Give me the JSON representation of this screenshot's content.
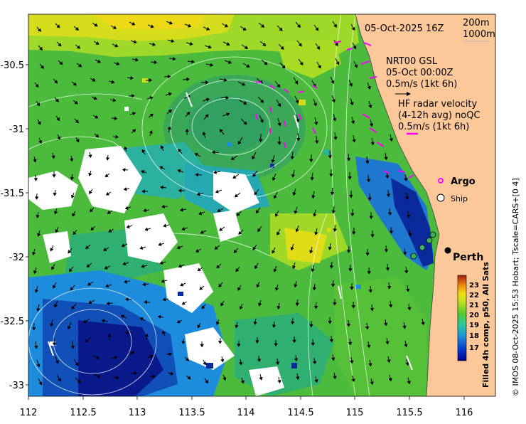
{
  "map": {
    "timestamp": "05-Oct-2025 16Z",
    "depth_contours": [
      "200m",
      "1000m"
    ],
    "gsl": {
      "lines": [
        "NRT00 GSL",
        "05-Oct 00:00Z",
        "0.5m/s (1kt 6h)"
      ]
    },
    "hf_radar": {
      "lines": [
        "HF radar velocity",
        "(4-12h avg) noQC",
        "0.5m/s (1kt 6h)"
      ]
    },
    "argo_label": "Argo",
    "ship_label": "Ship",
    "city_label": "Perth",
    "x_ticks": [
      "112",
      "112.5",
      "113",
      "113.5",
      "114",
      "114.5",
      "115",
      "115.5",
      "116"
    ],
    "y_ticks": [
      "-30.5",
      "-31",
      "-31.5",
      "-32",
      "-32.5",
      "-33"
    ],
    "colorbar": {
      "ticks": [
        "23",
        "22",
        "21",
        "20",
        "19",
        "18",
        "17"
      ],
      "title": "Filled 4h comp, p50, All Sats"
    },
    "credit": "© IMOS 08-Oct-2025 15:53 Hobart; Tscale=CARS+[0 4]",
    "colors": {
      "land": "#fcc89a",
      "gsl_arrow": "#000000",
      "hf_arrow": "#ff00ff",
      "argo": "#ff00ff",
      "sst_warm": "#e6dc14",
      "sst_mid": "#50c830",
      "sst_cool": "#1e8cdc",
      "sst_cold": "#0a1a8c"
    }
  }
}
